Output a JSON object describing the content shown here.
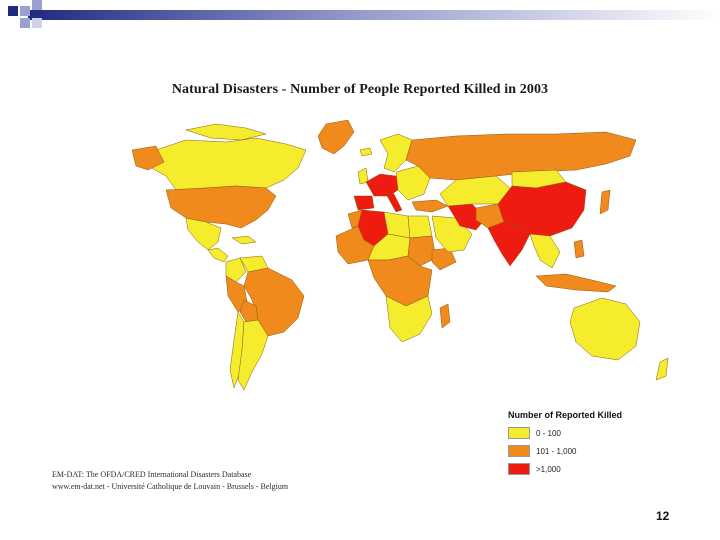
{
  "slide": {
    "title": "Natural Disasters - Number of People Reported Killed in 2003",
    "page_number": "12"
  },
  "legend": {
    "title": "Number of Reported Killed",
    "items": [
      {
        "label": "0 - 100",
        "color": "#f5ec2e"
      },
      {
        "label": "101 - 1,000",
        "color": "#f08a1c"
      },
      {
        "label": ">1,000",
        "color": "#ee1b10"
      }
    ]
  },
  "source": {
    "line1": "EM-DAT: The OFDA/CRED International Disasters Database",
    "line2": "www.em-dat.net - Université Catholique de Louvain - Brussels - Belgium"
  },
  "map": {
    "colors": {
      "low": "#f5ec2e",
      "mid": "#f08a1c",
      "high": "#ee1b10",
      "border": "#8a5a10"
    },
    "regions": [
      {
        "name": "Greenland",
        "class": "mid"
      },
      {
        "name": "Canada",
        "class": "low"
      },
      {
        "name": "United States",
        "class": "mid"
      },
      {
        "name": "Mexico",
        "class": "low"
      },
      {
        "name": "Central America",
        "class": "low"
      },
      {
        "name": "Caribbean",
        "class": "low"
      },
      {
        "name": "Colombia",
        "class": "low"
      },
      {
        "name": "Venezuela",
        "class": "low"
      },
      {
        "name": "Brazil",
        "class": "mid"
      },
      {
        "name": "Peru",
        "class": "mid"
      },
      {
        "name": "Bolivia",
        "class": "mid"
      },
      {
        "name": "Argentina",
        "class": "low"
      },
      {
        "name": "Chile",
        "class": "low"
      },
      {
        "name": "Iceland",
        "class": "low"
      },
      {
        "name": "United Kingdom",
        "class": "low"
      },
      {
        "name": "Scandinavia",
        "class": "low"
      },
      {
        "name": "Western Europe",
        "class": "high"
      },
      {
        "name": "Iberia",
        "class": "high"
      },
      {
        "name": "Italy",
        "class": "high"
      },
      {
        "name": "Eastern Europe",
        "class": "low"
      },
      {
        "name": "Russia",
        "class": "mid"
      },
      {
        "name": "Turkey",
        "class": "mid"
      },
      {
        "name": "Algeria",
        "class": "high"
      },
      {
        "name": "Morocco",
        "class": "mid"
      },
      {
        "name": "Libya",
        "class": "low"
      },
      {
        "name": "Egypt",
        "class": "low"
      },
      {
        "name": "West Africa",
        "class": "mid"
      },
      {
        "name": "Sahel",
        "class": "low"
      },
      {
        "name": "Sudan",
        "class": "mid"
      },
      {
        "name": "Ethiopia",
        "class": "mid"
      },
      {
        "name": "Central Africa",
        "class": "mid"
      },
      {
        "name": "Southern Africa",
        "class": "low"
      },
      {
        "name": "Madagascar",
        "class": "mid"
      },
      {
        "name": "Arabia",
        "class": "low"
      },
      {
        "name": "Iran",
        "class": "high"
      },
      {
        "name": "Central Asia",
        "class": "low"
      },
      {
        "name": "Pakistan",
        "class": "mid"
      },
      {
        "name": "India",
        "class": "high"
      },
      {
        "name": "China",
        "class": "high"
      },
      {
        "name": "Mongolia",
        "class": "low"
      },
      {
        "name": "Japan",
        "class": "mid"
      },
      {
        "name": "Southeast Asia",
        "class": "low"
      },
      {
        "name": "Indonesia",
        "class": "mid"
      },
      {
        "name": "Philippines",
        "class": "mid"
      },
      {
        "name": "Australia",
        "class": "low"
      },
      {
        "name": "New Zealand",
        "class": "low"
      }
    ]
  }
}
